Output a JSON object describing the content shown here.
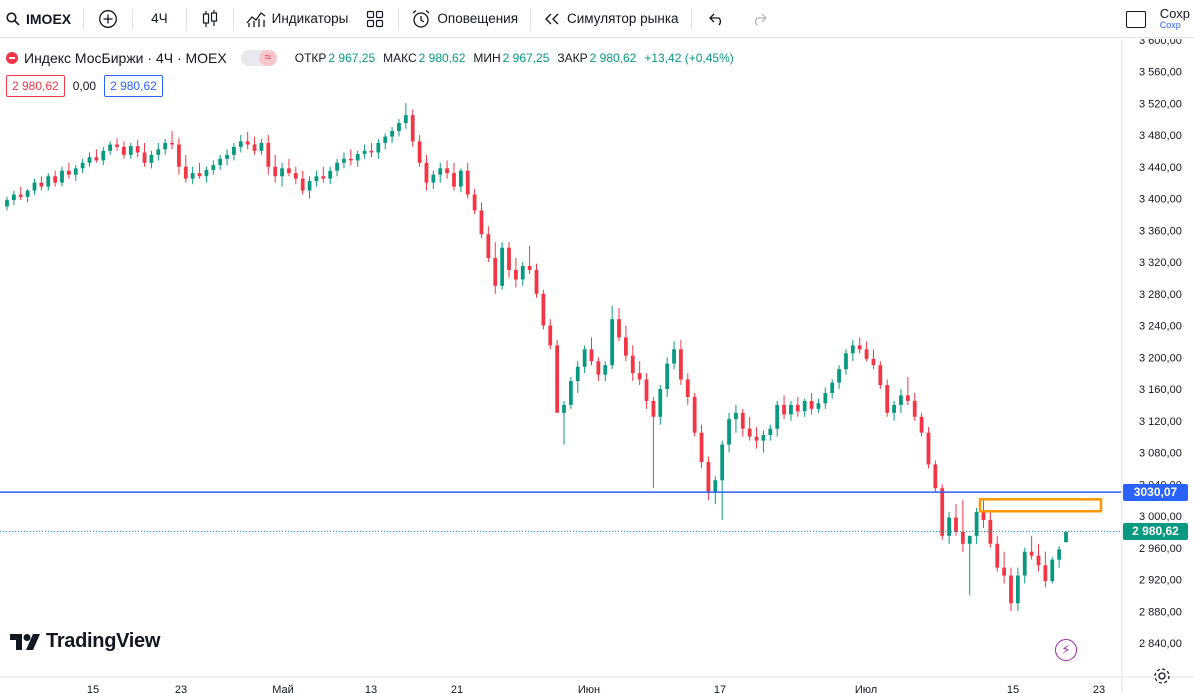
{
  "toolbar": {
    "symbol": "IMOEX",
    "interval": "4Ч",
    "indicators_label": "Индикаторы",
    "alerts_label": "Оповещения",
    "replay_label": "Симулятор рынка",
    "save_label": "Сохр",
    "save_sub": "Сохр"
  },
  "legend": {
    "title": "Индекс МосБиржи · 4Ч · MOEX",
    "open_label": "ОТКР",
    "open": "2 967,25",
    "high_label": "МАКС",
    "high": "2 980,62",
    "low_label": "МИН",
    "low": "2 967,25",
    "close_label": "ЗАКР",
    "close": "2 980,62",
    "change": "+13,42 (+0,45%)",
    "sell_price": "2 980,62",
    "spread": "0,00",
    "buy_price": "2 980,62"
  },
  "brand": {
    "name": "TradingView"
  },
  "colors": {
    "up": "#089981",
    "down": "#f23645",
    "hline": "#2962ff",
    "rect": "#ff9800"
  },
  "chart_data": {
    "type": "candlestick",
    "y_ticks": [
      2840,
      2880,
      2920,
      2960,
      3000,
      3040,
      3080,
      3120,
      3160,
      3200,
      3240,
      3280,
      3320,
      3360,
      3400,
      3440,
      3480,
      3520,
      3560,
      3600
    ],
    "y_tick_labels": [
      "2 840,00",
      "2 880,00",
      "2 920,00",
      "2 960,00",
      "3 000,00",
      "3 040,00",
      "3 080,00",
      "3 120,00",
      "3 160,00",
      "3 200,00",
      "3 240,00",
      "3 280,00",
      "3 320,00",
      "3 360,00",
      "3 400,00",
      "3 440,00",
      "3 480,00",
      "3 520,00",
      "3 560,00",
      "3 600,00"
    ],
    "x_tick_labels": [
      "15",
      "23",
      "Май",
      "13",
      "21",
      "Июн",
      "17",
      "Июл",
      "15",
      "23"
    ],
    "horizontal_line": {
      "value": 3030.07,
      "label": "3030,07"
    },
    "last_price": {
      "value": 2980.62,
      "label": "2 980,62"
    },
    "highlight_zone": {
      "y_top": 3021,
      "y_bottom": 3006
    },
    "series": [
      [
        3390,
        3402,
        3385,
        3398
      ],
      [
        3398,
        3410,
        3392,
        3405
      ],
      [
        3405,
        3415,
        3398,
        3402
      ],
      [
        3402,
        3412,
        3395,
        3410
      ],
      [
        3410,
        3425,
        3405,
        3420
      ],
      [
        3420,
        3428,
        3410,
        3415
      ],
      [
        3415,
        3432,
        3410,
        3428
      ],
      [
        3428,
        3435,
        3415,
        3420
      ],
      [
        3420,
        3440,
        3415,
        3435
      ],
      [
        3435,
        3445,
        3425,
        3430
      ],
      [
        3430,
        3442,
        3422,
        3438
      ],
      [
        3438,
        3450,
        3432,
        3445
      ],
      [
        3445,
        3458,
        3440,
        3452
      ],
      [
        3452,
        3462,
        3445,
        3448
      ],
      [
        3448,
        3465,
        3442,
        3460
      ],
      [
        3460,
        3472,
        3455,
        3468
      ],
      [
        3468,
        3476,
        3460,
        3465
      ],
      [
        3465,
        3472,
        3450,
        3455
      ],
      [
        3455,
        3470,
        3450,
        3466
      ],
      [
        3466,
        3474,
        3452,
        3458
      ],
      [
        3458,
        3470,
        3440,
        3445
      ],
      [
        3445,
        3460,
        3438,
        3455
      ],
      [
        3455,
        3470,
        3448,
        3462
      ],
      [
        3462,
        3475,
        3455,
        3470
      ],
      [
        3470,
        3485,
        3462,
        3468
      ],
      [
        3468,
        3476,
        3430,
        3440
      ],
      [
        3440,
        3455,
        3420,
        3425
      ],
      [
        3425,
        3440,
        3418,
        3432
      ],
      [
        3432,
        3445,
        3425,
        3428
      ],
      [
        3428,
        3440,
        3420,
        3436
      ],
      [
        3436,
        3448,
        3430,
        3442
      ],
      [
        3442,
        3455,
        3436,
        3450
      ],
      [
        3450,
        3462,
        3442,
        3455
      ],
      [
        3455,
        3470,
        3448,
        3465
      ],
      [
        3465,
        3480,
        3458,
        3472
      ],
      [
        3472,
        3484,
        3462,
        3468
      ],
      [
        3468,
        3478,
        3455,
        3460
      ],
      [
        3460,
        3475,
        3455,
        3470
      ],
      [
        3470,
        3480,
        3430,
        3440
      ],
      [
        3440,
        3455,
        3420,
        3428
      ],
      [
        3428,
        3445,
        3415,
        3438
      ],
      [
        3438,
        3450,
        3428,
        3432
      ],
      [
        3432,
        3440,
        3418,
        3425
      ],
      [
        3425,
        3435,
        3405,
        3410
      ],
      [
        3410,
        3428,
        3400,
        3422
      ],
      [
        3422,
        3435,
        3415,
        3428
      ],
      [
        3428,
        3440,
        3420,
        3425
      ],
      [
        3425,
        3440,
        3418,
        3435
      ],
      [
        3435,
        3450,
        3428,
        3445
      ],
      [
        3445,
        3458,
        3438,
        3450
      ],
      [
        3450,
        3462,
        3442,
        3448
      ],
      [
        3448,
        3460,
        3440,
        3456
      ],
      [
        3456,
        3468,
        3450,
        3460
      ],
      [
        3460,
        3470,
        3452,
        3458
      ],
      [
        3458,
        3475,
        3450,
        3470
      ],
      [
        3470,
        3482,
        3462,
        3478
      ],
      [
        3478,
        3490,
        3470,
        3485
      ],
      [
        3485,
        3500,
        3478,
        3495
      ],
      [
        3495,
        3520,
        3488,
        3505
      ],
      [
        3505,
        3512,
        3465,
        3472
      ],
      [
        3472,
        3480,
        3440,
        3445
      ],
      [
        3445,
        3455,
        3410,
        3420
      ],
      [
        3420,
        3435,
        3412,
        3430
      ],
      [
        3430,
        3445,
        3420,
        3438
      ],
      [
        3438,
        3448,
        3425,
        3432
      ],
      [
        3432,
        3445,
        3410,
        3415
      ],
      [
        3415,
        3438,
        3408,
        3435
      ],
      [
        3435,
        3445,
        3400,
        3405
      ],
      [
        3405,
        3412,
        3380,
        3385
      ],
      [
        3385,
        3395,
        3350,
        3355
      ],
      [
        3355,
        3365,
        3320,
        3325
      ],
      [
        3325,
        3345,
        3280,
        3290
      ],
      [
        3290,
        3345,
        3285,
        3338
      ],
      [
        3338,
        3345,
        3300,
        3310
      ],
      [
        3310,
        3325,
        3288,
        3298
      ],
      [
        3298,
        3320,
        3290,
        3315
      ],
      [
        3315,
        3340,
        3305,
        3310
      ],
      [
        3310,
        3318,
        3275,
        3280
      ],
      [
        3280,
        3285,
        3235,
        3240
      ],
      [
        3240,
        3248,
        3210,
        3215
      ],
      [
        3215,
        3222,
        3140,
        3130
      ],
      [
        3130,
        3145,
        3090,
        3140
      ],
      [
        3140,
        3175,
        3135,
        3170
      ],
      [
        3170,
        3195,
        3155,
        3188
      ],
      [
        3188,
        3215,
        3180,
        3210
      ],
      [
        3210,
        3225,
        3190,
        3195
      ],
      [
        3195,
        3200,
        3170,
        3178
      ],
      [
        3178,
        3195,
        3170,
        3190
      ],
      [
        3190,
        3265,
        3185,
        3248
      ],
      [
        3248,
        3262,
        3220,
        3225
      ],
      [
        3225,
        3240,
        3195,
        3202
      ],
      [
        3202,
        3215,
        3170,
        3180
      ],
      [
        3180,
        3195,
        3165,
        3172
      ],
      [
        3172,
        3180,
        3135,
        3145
      ],
      [
        3145,
        3150,
        3035,
        3125
      ],
      [
        3125,
        3165,
        3115,
        3160
      ],
      [
        3160,
        3200,
        3150,
        3192
      ],
      [
        3192,
        3220,
        3185,
        3210
      ],
      [
        3210,
        3222,
        3165,
        3172
      ],
      [
        3172,
        3180,
        3140,
        3150
      ],
      [
        3150,
        3155,
        3100,
        3105
      ],
      [
        3105,
        3115,
        3060,
        3068
      ],
      [
        3068,
        3075,
        3020,
        3030
      ],
      [
        3030,
        3050,
        3015,
        3045
      ],
      [
        3045,
        3095,
        2995,
        3090
      ],
      [
        3090,
        3130,
        3080,
        3122
      ],
      [
        3122,
        3140,
        3105,
        3130
      ],
      [
        3130,
        3135,
        3100,
        3110
      ],
      [
        3110,
        3125,
        3095,
        3100
      ],
      [
        3100,
        3112,
        3085,
        3095
      ],
      [
        3095,
        3108,
        3080,
        3102
      ],
      [
        3102,
        3115,
        3095,
        3110
      ],
      [
        3110,
        3145,
        3100,
        3140
      ],
      [
        3140,
        3152,
        3122,
        3128
      ],
      [
        3128,
        3145,
        3120,
        3140
      ],
      [
        3140,
        3150,
        3125,
        3132
      ],
      [
        3132,
        3148,
        3125,
        3145
      ],
      [
        3145,
        3155,
        3128,
        3135
      ],
      [
        3135,
        3148,
        3130,
        3142
      ],
      [
        3142,
        3162,
        3135,
        3155
      ],
      [
        3155,
        3172,
        3148,
        3168
      ],
      [
        3168,
        3190,
        3160,
        3185
      ],
      [
        3185,
        3210,
        3178,
        3205
      ],
      [
        3205,
        3222,
        3195,
        3215
      ],
      [
        3215,
        3225,
        3205,
        3210
      ],
      [
        3210,
        3220,
        3195,
        3198
      ],
      [
        3198,
        3210,
        3185,
        3190
      ],
      [
        3190,
        3195,
        3160,
        3165
      ],
      [
        3165,
        3172,
        3125,
        3130
      ],
      [
        3130,
        3145,
        3120,
        3140
      ],
      [
        3140,
        3160,
        3130,
        3152
      ],
      [
        3152,
        3175,
        3140,
        3145
      ],
      [
        3145,
        3155,
        3120,
        3125
      ],
      [
        3125,
        3130,
        3100,
        3105
      ],
      [
        3105,
        3112,
        3060,
        3065
      ],
      [
        3065,
        3070,
        3030,
        3035
      ],
      [
        3035,
        3040,
        2970,
        2975
      ],
      [
        2975,
        3005,
        2965,
        2998
      ],
      [
        2998,
        3015,
        2975,
        2980
      ],
      [
        2980,
        3020,
        2955,
        2965
      ],
      [
        2965,
        2975,
        2900,
        2975
      ],
      [
        2975,
        3010,
        2965,
        3005
      ],
      [
        3005,
        3020,
        2985,
        2995
      ],
      [
        2995,
        3005,
        2960,
        2965
      ],
      [
        2965,
        2975,
        2930,
        2935
      ],
      [
        2935,
        2955,
        2915,
        2925
      ],
      [
        2925,
        2935,
        2880,
        2890
      ],
      [
        2890,
        2935,
        2880,
        2925
      ],
      [
        2925,
        2960,
        2915,
        2955
      ],
      [
        2955,
        2975,
        2945,
        2950
      ],
      [
        2950,
        2965,
        2930,
        2938
      ],
      [
        2938,
        2955,
        2910,
        2918
      ],
      [
        2918,
        2948,
        2915,
        2945
      ],
      [
        2945,
        2962,
        2935,
        2958
      ],
      [
        2967,
        2980,
        2967,
        2980
      ]
    ]
  }
}
